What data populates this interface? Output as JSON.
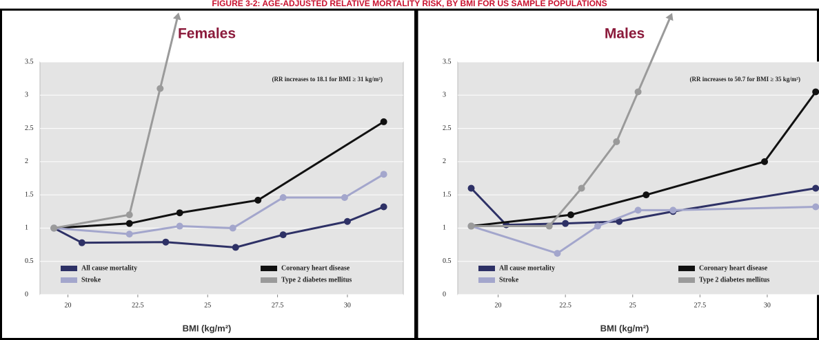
{
  "header": {
    "title": "FIGURE 3-2: AGE-ADJUSTED RELATIVE MORTALITY RISK, BY BMI FOR US SAMPLE POPULATIONS"
  },
  "chart_data": [
    {
      "type": "line",
      "title": "Females",
      "annotation": "(RR increases to 18.1 for BMI ≥ 31 kg/m²)",
      "x_label": "BMI (kg/m²)",
      "xlim": [
        19,
        32
      ],
      "ylim": [
        0,
        3.5
      ],
      "xticks": [
        20,
        22.5,
        25,
        27.5,
        30
      ],
      "yticks": [
        0,
        0.5,
        1,
        1.5,
        2,
        2.5,
        3,
        3.5
      ],
      "grid": true,
      "legend": "bottom",
      "series": [
        {
          "name": "All cause mortality",
          "color": "#2e3166",
          "x": [
            19.5,
            20.5,
            23.5,
            26,
            27.7,
            30,
            31.3
          ],
          "values": [
            1.0,
            0.78,
            0.79,
            0.71,
            0.9,
            1.1,
            1.32
          ]
        },
        {
          "name": "Coronary heart disease",
          "color": "#111111",
          "x": [
            19.5,
            22.2,
            24,
            26.8,
            31.3
          ],
          "values": [
            1.0,
            1.07,
            1.23,
            1.42,
            2.6
          ]
        },
        {
          "name": "Stroke",
          "color": "#a3a6cc",
          "x": [
            19.5,
            22.2,
            24,
            25.9,
            27.7,
            29.9,
            31.3
          ],
          "values": [
            1.0,
            0.91,
            1.03,
            1.0,
            1.46,
            1.46,
            1.81
          ]
        },
        {
          "name": "Type 2 diabetes mellitus",
          "color": "#9a9a9a",
          "x": [
            19.5,
            22.2,
            23.3
          ],
          "values": [
            1.0,
            1.2,
            3.1
          ],
          "arrow": true
        }
      ]
    },
    {
      "type": "line",
      "title": "Males",
      "annotation": "(RR increases to 50.7 for BMI ≥ 35 kg/m²)",
      "x_label": "BMI (kg/m²)",
      "xlim": [
        18.5,
        32
      ],
      "ylim": [
        0,
        3.5
      ],
      "xticks": [
        20,
        22.5,
        25,
        27.5,
        30
      ],
      "yticks": [
        0,
        0.5,
        1,
        1.5,
        2,
        2.5,
        3,
        3.5
      ],
      "grid": true,
      "legend": "bottom",
      "series": [
        {
          "name": "All cause mortality",
          "color": "#2e3166",
          "x": [
            19,
            20.3,
            22.5,
            24.5,
            26.5,
            31.8
          ],
          "values": [
            1.6,
            1.05,
            1.07,
            1.1,
            1.25,
            1.6
          ]
        },
        {
          "name": "Coronary heart disease",
          "color": "#111111",
          "x": [
            19,
            22.7,
            25.5,
            29.9,
            31.8
          ],
          "values": [
            1.03,
            1.2,
            1.5,
            2.0,
            3.05
          ]
        },
        {
          "name": "Stroke",
          "color": "#a3a6cc",
          "x": [
            19,
            22.2,
            23.7,
            25.2,
            26.5,
            31.8
          ],
          "values": [
            1.03,
            0.62,
            1.03,
            1.27,
            1.27,
            1.32
          ]
        },
        {
          "name": "Type 2 diabetes mellitus",
          "color": "#9a9a9a",
          "x": [
            19,
            21.9,
            23.1,
            24.4,
            25.2
          ],
          "values": [
            1.03,
            1.03,
            1.6,
            2.3,
            3.05
          ],
          "arrow": true
        }
      ]
    }
  ]
}
